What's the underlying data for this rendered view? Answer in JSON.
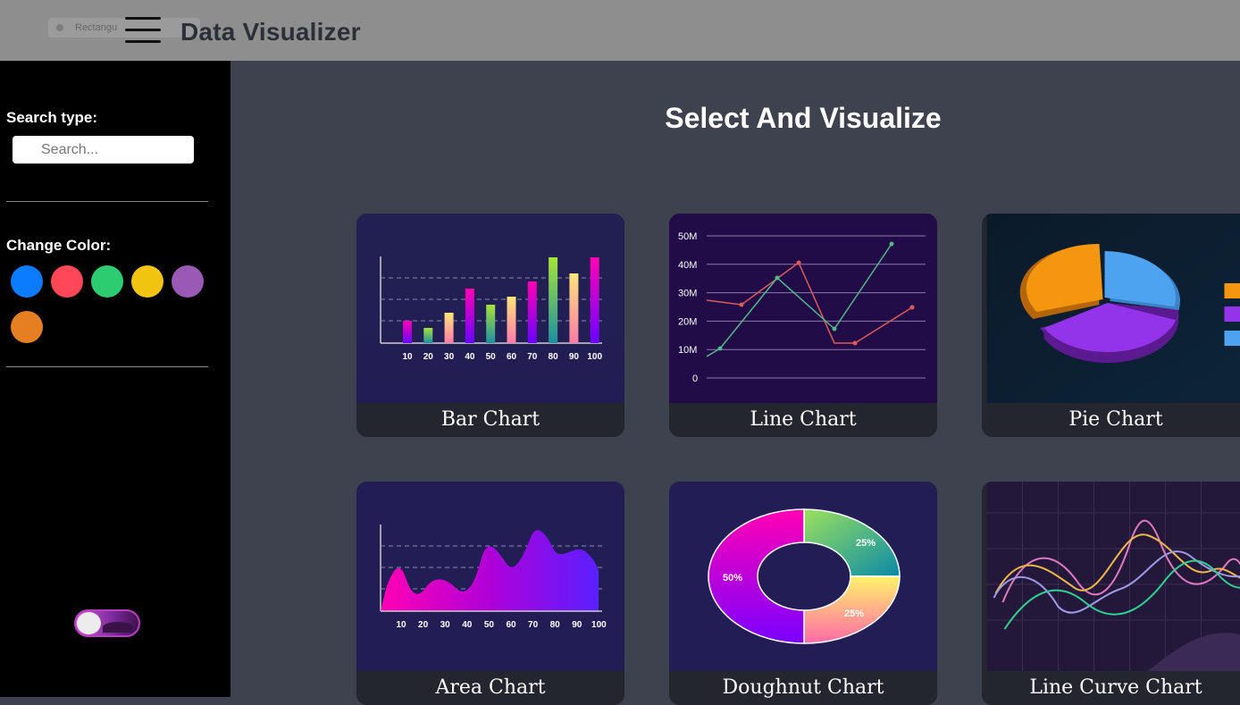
{
  "header": {
    "ghost_tab": "Rectangu",
    "title": "Data Visualizer"
  },
  "sidebar": {
    "search_label": "Search type:",
    "search_placeholder": "Search...",
    "color_label": "Change Color:",
    "colors": [
      "#0a7cff",
      "#ff4757",
      "#2ecc71",
      "#f1c40f",
      "#9b59b6",
      "#e67e22"
    ]
  },
  "main": {
    "title": "Select And Visualize",
    "cards": [
      {
        "label": "Bar Chart"
      },
      {
        "label": "Line Chart"
      },
      {
        "label": "Pie Chart"
      },
      {
        "label": "Area Chart"
      },
      {
        "label": "Doughnut Chart"
      },
      {
        "label": "Line Curve Chart"
      }
    ],
    "bar_thumb": {
      "categories": [
        "10",
        "20",
        "30",
        "40",
        "50",
        "60",
        "70",
        "80",
        "90",
        "100"
      ]
    },
    "line_thumb": {
      "y_ticks": [
        "50M",
        "40M",
        "30M",
        "20M",
        "10M",
        "0"
      ]
    },
    "area_thumb": {
      "categories": [
        "10",
        "20",
        "30",
        "40",
        "50",
        "60",
        "70",
        "80",
        "90",
        "100"
      ]
    },
    "doughnut_thumb": {
      "labels": [
        "25%",
        "25%",
        "50%"
      ]
    }
  }
}
